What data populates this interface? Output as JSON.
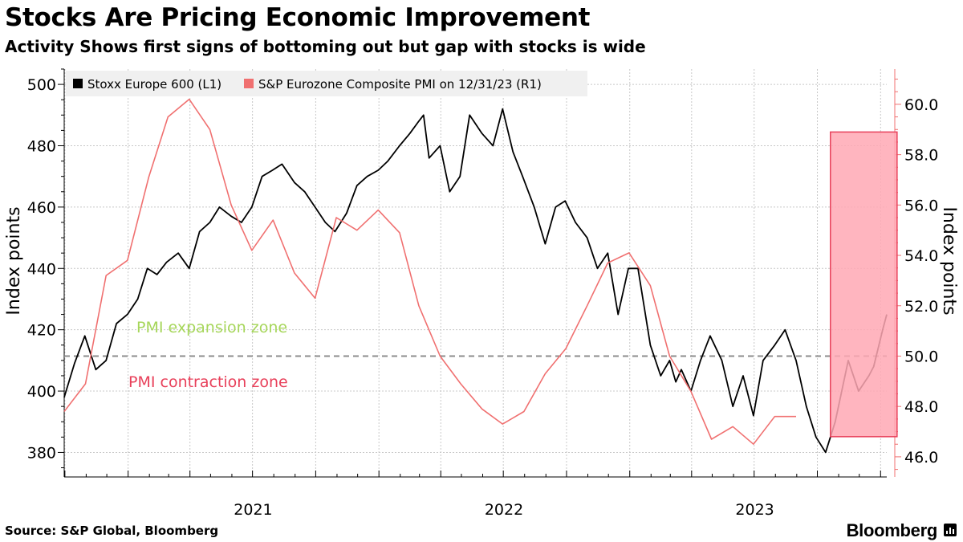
{
  "title": "Stocks Are Pricing Economic Improvement",
  "subtitle": "Activity Shows first signs of bottoming out but gap with stocks is wide",
  "source": "Source: S&P Global, Bloomberg",
  "brand": "Bloomberg",
  "colors": {
    "stoxx": "#000000",
    "pmi": "#f07070",
    "right_axis": "#f07070",
    "highlight_fill": "#ffa8b4",
    "highlight_stroke": "#e8405a",
    "expansion_text": "#a6d65a",
    "contraction_text": "#e8405a",
    "grid": "#c8c8c8",
    "reference_line": "#8c8c8c"
  },
  "chart_data": {
    "type": "line",
    "x_axis": {
      "type": "date",
      "range": [
        "2020-09-30",
        "2024-01-10"
      ],
      "tick_labels": [
        "2021",
        "2022",
        "2023"
      ]
    },
    "left_axis": {
      "label": "Index points",
      "range": [
        372,
        505
      ],
      "ticks": [
        380,
        400,
        420,
        440,
        460,
        480,
        500
      ]
    },
    "right_axis": {
      "label": "Index points",
      "range": [
        45.2,
        61.4
      ],
      "ticks": [
        "46.0",
        "48.0",
        "50.0",
        "52.0",
        "54.0",
        "56.0",
        "58.0",
        "60.0"
      ]
    },
    "grid": true,
    "legend_position": "top-left",
    "series": [
      {
        "name": "Stoxx Europe 600 (L1)",
        "axis": "left",
        "x": [
          "2020-09-30",
          "2020-10-15",
          "2020-10-30",
          "2020-11-15",
          "2020-11-30",
          "2020-12-15",
          "2020-12-31",
          "2021-01-15",
          "2021-01-29",
          "2021-02-12",
          "2021-02-26",
          "2021-03-15",
          "2021-03-31",
          "2021-04-15",
          "2021-04-30",
          "2021-05-14",
          "2021-05-31",
          "2021-06-15",
          "2021-06-30",
          "2021-07-15",
          "2021-07-30",
          "2021-08-13",
          "2021-08-31",
          "2021-09-15",
          "2021-09-30",
          "2021-10-15",
          "2021-10-29",
          "2021-11-15",
          "2021-11-30",
          "2021-12-15",
          "2021-12-31",
          "2022-01-14",
          "2022-01-31",
          "2022-02-15",
          "2022-02-28",
          "2022-03-07",
          "2022-03-15",
          "2022-03-31",
          "2022-04-14",
          "2022-04-29",
          "2022-05-13",
          "2022-05-31",
          "2022-06-16",
          "2022-06-30",
          "2022-07-15",
          "2022-07-29",
          "2022-08-15",
          "2022-08-31",
          "2022-09-15",
          "2022-09-29",
          "2022-10-14",
          "2022-10-31",
          "2022-11-15",
          "2022-11-30",
          "2022-12-15",
          "2022-12-30",
          "2023-01-13",
          "2023-01-31",
          "2023-02-15",
          "2023-02-28",
          "2023-03-09",
          "2023-03-17",
          "2023-03-31",
          "2023-04-14",
          "2023-04-28",
          "2023-05-15",
          "2023-05-31",
          "2023-06-15",
          "2023-06-30",
          "2023-07-14",
          "2023-07-31",
          "2023-08-15",
          "2023-08-31",
          "2023-09-15",
          "2023-09-29",
          "2023-10-13",
          "2023-10-27",
          "2023-11-15",
          "2023-11-30",
          "2023-12-15",
          "2023-12-22",
          "2024-01-04",
          "2024-01-10"
        ],
        "y": [
          398,
          409,
          418,
          407,
          410,
          422,
          425,
          430,
          440,
          438,
          442,
          445,
          440,
          452,
          455,
          460,
          457,
          455,
          460,
          470,
          472,
          474,
          468,
          465,
          460,
          455,
          452,
          458,
          467,
          470,
          472,
          475,
          480,
          484,
          488,
          490,
          476,
          480,
          465,
          470,
          490,
          484,
          480,
          492,
          478,
          470,
          460,
          448,
          460,
          462,
          455,
          450,
          440,
          445,
          425,
          440,
          440,
          415,
          405,
          410,
          403,
          407,
          400,
          410,
          418,
          410,
          395,
          405,
          392,
          410,
          415,
          420,
          410,
          395,
          385,
          380,
          390,
          410,
          400,
          405,
          408,
          420,
          425
        ]
      },
      {
        "name": "S&P Eurozone Composite PMI on 12/31/23 (R1)",
        "axis": "right",
        "x": [
          "2020-09-30",
          "2020-10-31",
          "2020-11-30",
          "2020-12-31",
          "2021-01-31",
          "2021-02-28",
          "2021-03-31",
          "2021-04-30",
          "2021-05-31",
          "2021-06-30",
          "2021-07-31",
          "2021-08-31",
          "2021-09-30",
          "2021-10-31",
          "2021-11-30",
          "2021-12-31",
          "2022-01-31",
          "2022-02-28",
          "2022-03-31",
          "2022-04-30",
          "2022-05-31",
          "2022-06-30",
          "2022-07-31",
          "2022-08-31",
          "2022-09-30",
          "2022-10-31",
          "2022-11-30",
          "2022-12-31",
          "2023-01-31",
          "2023-02-28",
          "2023-03-31",
          "2023-04-30",
          "2023-05-31",
          "2023-06-30",
          "2023-07-31",
          "2023-08-31",
          "2023-09-30",
          "2023-10-31",
          "2023-11-30",
          "2023-12-31"
        ],
        "y": [
          47.8,
          48.9,
          53.2,
          53.8,
          57.1,
          59.5,
          60.2,
          59.0,
          56.0,
          54.2,
          55.4,
          53.3,
          52.3,
          55.5,
          55.0,
          55.8,
          54.9,
          52.0,
          50.0,
          48.9,
          47.9,
          47.3,
          47.8,
          49.3,
          50.3,
          52.0,
          53.7,
          54.1,
          52.8,
          50.0,
          48.6,
          46.7,
          47.2,
          46.5,
          47.6,
          47.6,
          null,
          null,
          null,
          null
        ]
      }
    ],
    "annotations": [
      {
        "text": "PMI expansion zone",
        "kind": "zone-label"
      },
      {
        "text": "PMI contraction zone",
        "kind": "zone-label"
      }
    ],
    "reference_line": {
      "axis": "right",
      "value": 50.0,
      "style": "dashed"
    },
    "highlight_band": {
      "x": [
        "2023-10-20",
        "2024-01-25"
      ],
      "y": [
        46.8,
        58.9
      ],
      "axis": "right"
    }
  }
}
